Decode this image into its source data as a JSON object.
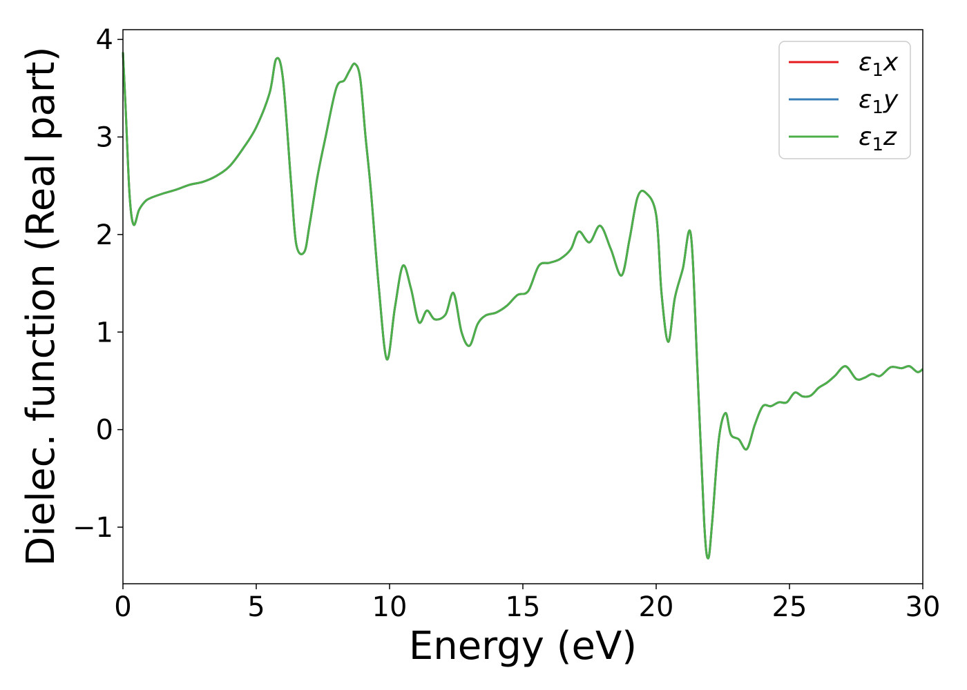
{
  "chart_data": {
    "type": "line",
    "title": "",
    "xlabel": "Energy (eV)",
    "ylabel": "Dielec. function (Real part)",
    "xlim": [
      0,
      30
    ],
    "ylim": [
      -1.58,
      4.1
    ],
    "xticks": [
      0,
      5,
      10,
      15,
      20,
      25,
      30
    ],
    "xtick_labels": [
      "0",
      "5",
      "10",
      "15",
      "20",
      "25",
      "30"
    ],
    "yticks": [
      -1,
      0,
      1,
      2,
      3,
      4
    ],
    "ytick_labels": [
      "−1",
      "0",
      "1",
      "2",
      "3",
      "4"
    ],
    "grid": false,
    "legend_position": "top-right",
    "series": [
      {
        "name": "ε₁x",
        "legend_main": "ε",
        "legend_sub": "1",
        "legend_tail": "x",
        "color": "#e41a1c"
      },
      {
        "name": "ε₁y",
        "legend_main": "ε",
        "legend_sub": "1",
        "legend_tail": "y",
        "color": "#377eb8"
      },
      {
        "name": "ε₁z",
        "legend_main": "ε",
        "legend_sub": "1",
        "legend_tail": "z",
        "color": "#4daf4a"
      }
    ],
    "x": [
      0.0,
      0.1,
      0.25,
      0.4,
      0.6,
      0.8,
      1.0,
      1.5,
      2.0,
      2.5,
      3.0,
      3.5,
      4.0,
      4.5,
      5.0,
      5.5,
      5.75,
      6.0,
      6.3,
      6.5,
      6.8,
      7.0,
      7.3,
      7.6,
      8.0,
      8.3,
      8.5,
      8.7,
      8.9,
      9.1,
      9.3,
      9.6,
      9.9,
      10.2,
      10.5,
      10.8,
      11.1,
      11.4,
      11.7,
      12.1,
      12.4,
      12.7,
      13.0,
      13.3,
      13.6,
      14.0,
      14.4,
      14.8,
      15.2,
      15.6,
      16.0,
      16.4,
      16.8,
      17.1,
      17.5,
      17.9,
      18.3,
      18.7,
      19.0,
      19.3,
      19.6,
      20.0,
      20.2,
      20.45,
      20.7,
      21.0,
      21.3,
      21.55,
      21.8,
      21.95,
      22.1,
      22.35,
      22.6,
      22.8,
      23.1,
      23.4,
      23.7,
      24.0,
      24.3,
      24.6,
      24.9,
      25.2,
      25.5,
      25.8,
      26.1,
      26.4,
      26.7,
      27.1,
      27.5,
      27.8,
      28.1,
      28.4,
      28.8,
      29.2,
      29.5,
      29.8,
      30.0
    ],
    "y": [
      3.87,
      3.3,
      2.4,
      2.1,
      2.25,
      2.33,
      2.37,
      2.42,
      2.46,
      2.51,
      2.54,
      2.6,
      2.7,
      2.88,
      3.1,
      3.45,
      3.8,
      3.6,
      2.55,
      1.9,
      1.82,
      2.1,
      2.6,
      3.0,
      3.5,
      3.58,
      3.68,
      3.75,
      3.6,
      3.0,
      2.45,
      1.45,
      0.72,
      1.25,
      1.68,
      1.45,
      1.1,
      1.22,
      1.13,
      1.18,
      1.4,
      1.0,
      0.86,
      1.08,
      1.17,
      1.2,
      1.27,
      1.38,
      1.42,
      1.68,
      1.71,
      1.75,
      1.85,
      2.03,
      1.92,
      2.09,
      1.85,
      1.58,
      1.95,
      2.38,
      2.43,
      2.2,
      1.4,
      0.9,
      1.35,
      1.65,
      2.0,
      0.6,
      -0.95,
      -1.32,
      -0.95,
      -0.1,
      0.17,
      -0.05,
      -0.1,
      -0.2,
      0.05,
      0.24,
      0.24,
      0.28,
      0.28,
      0.38,
      0.34,
      0.35,
      0.43,
      0.48,
      0.55,
      0.65,
      0.52,
      0.53,
      0.57,
      0.55,
      0.64,
      0.63,
      0.65,
      0.59,
      0.62
    ]
  }
}
